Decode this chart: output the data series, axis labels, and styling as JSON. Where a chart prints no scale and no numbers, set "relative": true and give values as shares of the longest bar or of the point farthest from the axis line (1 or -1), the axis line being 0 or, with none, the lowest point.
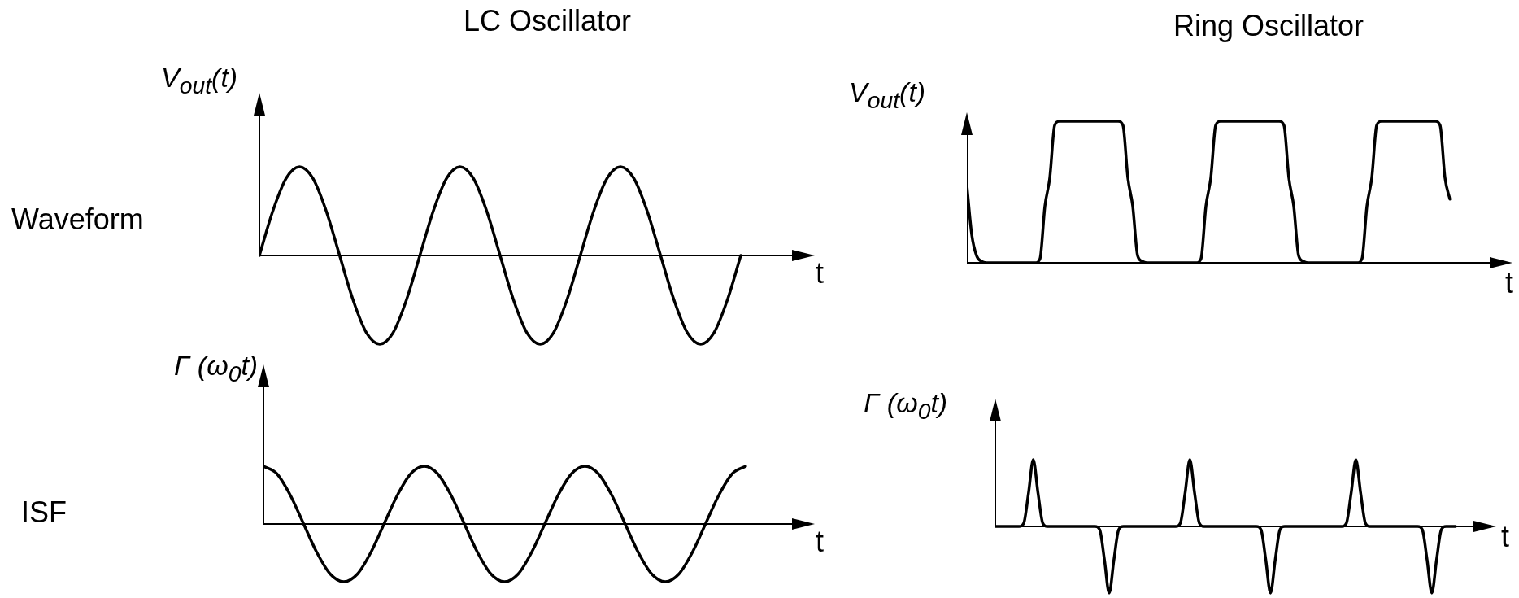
{
  "chart_data": [
    {
      "type": "line",
      "relative": true,
      "title": "LC Oscillator",
      "annotations": [
        "Waveform"
      ],
      "ylabel": "V$_{out}$(t)",
      "xlabel": "t",
      "color": "#000000",
      "categories": [
        null,
        null,
        null,
        null,
        null,
        null,
        null,
        null,
        null,
        null,
        null,
        null,
        null,
        null,
        null,
        null,
        null,
        null,
        null,
        null,
        null,
        null,
        null,
        null,
        null,
        null,
        null,
        null,
        null,
        null,
        null,
        null,
        null,
        null,
        null,
        null,
        null
      ],
      "values": [
        0,
        0.5,
        0.87,
        1,
        0.87,
        0.5,
        0,
        -0.5,
        -0.87,
        -1,
        -0.87,
        -0.5,
        0,
        0.5,
        0.87,
        1,
        0.87,
        0.5,
        0,
        -0.5,
        -0.87,
        -1,
        -0.87,
        -0.5,
        0,
        0.5,
        0.87,
        1,
        0.87,
        0.5,
        0,
        -0.5,
        -0.87,
        -1,
        -0.87,
        -0.5,
        0
      ]
    },
    {
      "type": "line",
      "relative": true,
      "title": "Ring Oscillator",
      "ylabel": "V$_{out}$(t)",
      "xlabel": "t",
      "color": "#000000",
      "categories": [
        null,
        null,
        null,
        null,
        null,
        null,
        null,
        null,
        null,
        null,
        null,
        null,
        null,
        null,
        null,
        null,
        null,
        null,
        null,
        null,
        null,
        null,
        null,
        null,
        null,
        null,
        null,
        null,
        null,
        null,
        null,
        null,
        null,
        null,
        null,
        null,
        null,
        null,
        null,
        null,
        null,
        null,
        null,
        null,
        null,
        null,
        null,
        null,
        null,
        null,
        null,
        null,
        null,
        null,
        null,
        null,
        null,
        null,
        null,
        null,
        null,
        null,
        null,
        null,
        null,
        null,
        null,
        null,
        null,
        null,
        null,
        null,
        null,
        null,
        null,
        null,
        null,
        null,
        null,
        null,
        null,
        null,
        null,
        null,
        null,
        null,
        null,
        null,
        null,
        null,
        null,
        null,
        null,
        null,
        null,
        null,
        null,
        null,
        null,
        null
      ],
      "values": [
        0.55,
        0.2,
        0.05,
        0.01,
        0,
        0,
        0,
        0,
        0,
        0,
        0,
        0,
        0,
        0,
        0,
        0.03,
        0.4,
        0.6,
        0.97,
        1,
        1,
        1,
        1,
        1,
        1,
        1,
        1,
        1,
        1,
        1,
        1,
        1,
        0.97,
        0.6,
        0.4,
        0.05,
        0.01,
        0,
        0,
        0,
        0,
        0,
        0,
        0,
        0,
        0,
        0,
        0,
        0.03,
        0.4,
        0.6,
        0.97,
        1,
        1,
        1,
        1,
        1,
        1,
        1,
        1,
        1,
        1,
        1,
        1,
        1,
        0.97,
        0.6,
        0.4,
        0.05,
        0.01,
        0,
        0,
        0,
        0,
        0,
        0,
        0,
        0,
        0,
        0,
        0,
        0.03,
        0.4,
        0.6,
        0.97,
        1,
        1,
        1,
        1,
        1,
        1,
        1,
        1,
        1,
        1,
        1,
        1,
        0.97,
        0.6,
        0.45
      ]
    },
    {
      "type": "line",
      "relative": true,
      "annotations": [
        "ISF"
      ],
      "ylabel": "Γ (ω$_{0}$t)",
      "xlabel": "t",
      "color": "#000000",
      "categories": [
        null,
        null,
        null,
        null,
        null,
        null,
        null,
        null,
        null,
        null,
        null,
        null,
        null,
        null,
        null,
        null,
        null,
        null,
        null,
        null,
        null,
        null,
        null,
        null,
        null,
        null,
        null,
        null,
        null,
        null,
        null,
        null,
        null,
        null,
        null,
        null,
        null
      ],
      "values": [
        1,
        0.87,
        0.5,
        0,
        -0.5,
        -0.87,
        -1,
        -0.87,
        -0.5,
        0,
        0.5,
        0.87,
        1,
        0.87,
        0.5,
        0,
        -0.5,
        -0.87,
        -1,
        -0.87,
        -0.5,
        0,
        0.5,
        0.87,
        1,
        0.87,
        0.5,
        0,
        -0.5,
        -0.87,
        -1,
        -0.87,
        -0.5,
        0,
        0.5,
        0.87,
        1
      ]
    },
    {
      "type": "line",
      "relative": true,
      "ylabel": "Γ (ω$_{0}$t)",
      "xlabel": "t",
      "color": "#000000",
      "categories": [
        null,
        null,
        null,
        null,
        null,
        null,
        null,
        null,
        null,
        null,
        null,
        null,
        null,
        null,
        null,
        null,
        null,
        null,
        null,
        null,
        null,
        null,
        null,
        null,
        null,
        null,
        null,
        null,
        null,
        null,
        null,
        null,
        null,
        null,
        null,
        null,
        null,
        null,
        null,
        null,
        null,
        null,
        null,
        null,
        null,
        null,
        null,
        null,
        null,
        null,
        null,
        null,
        null,
        null,
        null,
        null,
        null,
        null,
        null,
        null,
        null,
        null,
        null,
        null,
        null,
        null,
        null,
        null,
        null,
        null,
        null,
        null,
        null,
        null,
        null,
        null,
        null,
        null,
        null,
        null,
        null,
        null,
        null,
        null,
        null,
        null,
        null,
        null,
        null,
        null,
        null,
        null,
        null,
        null,
        null,
        null,
        null,
        null
      ],
      "values": [
        0,
        0,
        0,
        0,
        0,
        0,
        0.05,
        0.5,
        1,
        0.5,
        0.05,
        0,
        0,
        0,
        0,
        0,
        0,
        0,
        0,
        0,
        0,
        0,
        -0.05,
        -0.5,
        -1,
        -0.5,
        -0.05,
        0,
        0,
        0,
        0,
        0,
        0,
        0,
        0,
        0,
        0,
        0,
        0,
        0.05,
        0.5,
        1,
        0.5,
        0.05,
        0,
        0,
        0,
        0,
        0,
        0,
        0,
        0,
        0,
        0,
        0,
        0,
        -0.05,
        -0.5,
        -1,
        -0.5,
        -0.05,
        0,
        0,
        0,
        0,
        0,
        0,
        0,
        0,
        0,
        0,
        0,
        0,
        0,
        0.05,
        0.5,
        1,
        0.5,
        0.05,
        0,
        0,
        0,
        0,
        0,
        0,
        0,
        0,
        0,
        0,
        0,
        -0.05,
        -0.5,
        -1,
        -0.5,
        -0.05,
        0,
        0,
        0
      ]
    }
  ]
}
